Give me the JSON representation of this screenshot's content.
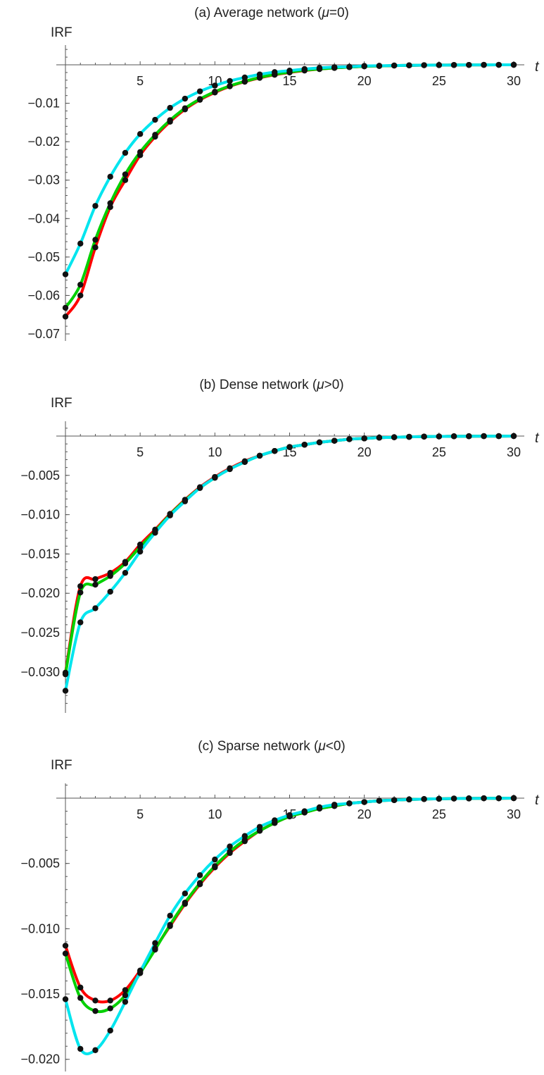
{
  "chart_data": [
    {
      "type": "line",
      "title_prefix": "(a) Average network (",
      "title_mu": "μ",
      "title_suffix": "=0)",
      "ylabel": "IRF",
      "xlabel": "t",
      "xlim": [
        0,
        30
      ],
      "ylim": [
        -0.07,
        0
      ],
      "xticks": [
        5,
        10,
        15,
        20,
        25,
        30
      ],
      "xtick_labels": [
        "5",
        "10",
        "15",
        "20",
        "25",
        "30"
      ],
      "yticks": [
        -0.01,
        -0.02,
        -0.03,
        -0.04,
        -0.05,
        -0.06,
        -0.07
      ],
      "ytick_labels": [
        "-0.01",
        "-0.02",
        "-0.03",
        "-0.04",
        "-0.05",
        "-0.06",
        "-0.07"
      ],
      "markers": "black dots at integer t",
      "series": [
        {
          "color": "#ff0000",
          "x": [
            0,
            1,
            2,
            3,
            4,
            5,
            6,
            7,
            8,
            9,
            10,
            11,
            12,
            13,
            14,
            15,
            16,
            17,
            18,
            19,
            20,
            21,
            22,
            23,
            24,
            25,
            26,
            27,
            28,
            29,
            30
          ],
          "values": [
            -0.0655,
            -0.06,
            -0.0475,
            -0.037,
            -0.03,
            -0.0235,
            -0.0187,
            -0.0148,
            -0.0116,
            -0.0091,
            -0.0072,
            -0.0056,
            -0.0044,
            -0.0034,
            -0.0026,
            -0.002,
            -0.0015,
            -0.0011,
            -0.0008,
            -0.0006,
            -0.0004,
            -0.0003,
            -0.0002,
            -0.00015,
            -0.0001,
            -7e-05,
            -5e-05,
            -3e-05,
            -2e-05,
            -1e-05,
            0
          ]
        },
        {
          "color": "#00d000",
          "x": [
            0,
            1,
            2,
            3,
            4,
            5,
            6,
            7,
            8,
            9,
            10,
            11,
            12,
            13,
            14,
            15,
            16,
            17,
            18,
            19,
            20,
            21,
            22,
            23,
            24,
            25,
            26,
            27,
            28,
            29,
            30
          ],
          "values": [
            -0.0632,
            -0.0572,
            -0.0455,
            -0.036,
            -0.0285,
            -0.0227,
            -0.0182,
            -0.0144,
            -0.0113,
            -0.0089,
            -0.007,
            -0.0055,
            -0.0043,
            -0.0033,
            -0.0025,
            -0.0019,
            -0.0014,
            -0.0011,
            -0.0008,
            -0.0006,
            -0.0004,
            -0.0003,
            -0.0002,
            -0.00015,
            -0.0001,
            -7e-05,
            -5e-05,
            -3e-05,
            -2e-05,
            -1e-05,
            0
          ]
        },
        {
          "color": "#00e5ee",
          "x": [
            0,
            1,
            2,
            3,
            4,
            5,
            6,
            7,
            8,
            9,
            10,
            11,
            12,
            13,
            14,
            15,
            16,
            17,
            18,
            19,
            20,
            21,
            22,
            23,
            24,
            25,
            26,
            27,
            28,
            29,
            30
          ],
          "values": [
            -0.0545,
            -0.0465,
            -0.0367,
            -0.0291,
            -0.0229,
            -0.018,
            -0.0143,
            -0.0112,
            -0.0088,
            -0.0069,
            -0.0054,
            -0.0042,
            -0.0033,
            -0.0025,
            -0.0019,
            -0.0015,
            -0.0011,
            -0.0008,
            -0.0006,
            -0.0005,
            -0.0003,
            -0.00025,
            -0.00018,
            -0.00013,
            -0.0001,
            -7e-05,
            -5e-05,
            -3e-05,
            -2e-05,
            -1e-05,
            0
          ]
        }
      ]
    },
    {
      "type": "line",
      "title_prefix": "(b) Dense network (",
      "title_mu": "μ",
      "title_suffix": ">0)",
      "ylabel": "IRF",
      "xlabel": "t",
      "xlim": [
        0,
        30
      ],
      "ylim": [
        -0.0345,
        0
      ],
      "xticks": [
        5,
        10,
        15,
        20,
        25,
        30
      ],
      "xtick_labels": [
        "5",
        "10",
        "15",
        "20",
        "25",
        "30"
      ],
      "yticks": [
        -0.005,
        -0.01,
        -0.015,
        -0.02,
        -0.025,
        -0.03
      ],
      "ytick_labels": [
        "-0.005",
        "-0.010",
        "-0.015",
        "-0.020",
        "-0.025",
        "-0.030"
      ],
      "markers": "black dots at integer t",
      "series": [
        {
          "color": "#ff0000",
          "x": [
            0,
            1,
            2,
            3,
            4,
            5,
            6,
            7,
            8,
            9,
            10,
            11,
            12,
            13,
            14,
            15,
            16,
            17,
            18,
            19,
            20,
            21,
            22,
            23,
            24,
            25,
            26,
            27,
            28,
            29,
            30
          ],
          "values": [
            -0.0301,
            -0.0191,
            -0.0182,
            -0.0174,
            -0.016,
            -0.0138,
            -0.0119,
            -0.0099,
            -0.0081,
            -0.0065,
            -0.0052,
            -0.0041,
            -0.0032,
            -0.0025,
            -0.0019,
            -0.0014,
            -0.0011,
            -0.0008,
            -0.0006,
            -0.0004,
            -0.0003,
            -0.0002,
            -0.00015,
            -0.0001,
            -7e-05,
            -5e-05,
            -3e-05,
            -2e-05,
            -1e-05,
            -1e-05,
            0
          ]
        },
        {
          "color": "#00d000",
          "x": [
            0,
            1,
            2,
            3,
            4,
            5,
            6,
            7,
            8,
            9,
            10,
            11,
            12,
            13,
            14,
            15,
            16,
            17,
            18,
            19,
            20,
            21,
            22,
            23,
            24,
            25,
            26,
            27,
            28,
            29,
            30
          ],
          "values": [
            -0.0303,
            -0.0199,
            -0.0189,
            -0.0178,
            -0.0162,
            -0.0141,
            -0.0121,
            -0.01,
            -0.0082,
            -0.0066,
            -0.0053,
            -0.0042,
            -0.0033,
            -0.0025,
            -0.0019,
            -0.0014,
            -0.0011,
            -0.0008,
            -0.0006,
            -0.0004,
            -0.0003,
            -0.0002,
            -0.00015,
            -0.0001,
            -7e-05,
            -5e-05,
            -3e-05,
            -2e-05,
            -1e-05,
            -1e-05,
            0
          ]
        },
        {
          "color": "#00e5ee",
          "x": [
            0,
            1,
            2,
            3,
            4,
            5,
            6,
            7,
            8,
            9,
            10,
            11,
            12,
            13,
            14,
            15,
            16,
            17,
            18,
            19,
            20,
            21,
            22,
            23,
            24,
            25,
            26,
            27,
            28,
            29,
            30
          ],
          "values": [
            -0.0324,
            -0.0237,
            -0.0219,
            -0.0198,
            -0.0174,
            -0.0147,
            -0.0123,
            -0.0101,
            -0.0083,
            -0.0066,
            -0.0053,
            -0.0042,
            -0.0033,
            -0.0025,
            -0.0019,
            -0.0014,
            -0.0011,
            -0.0008,
            -0.0006,
            -0.0004,
            -0.0003,
            -0.0002,
            -0.00015,
            -0.0001,
            -7e-05,
            -5e-05,
            -3e-05,
            -2e-05,
            -1e-05,
            -1e-05,
            0
          ]
        }
      ]
    },
    {
      "type": "line",
      "title_prefix": "(c) Sparse network (",
      "title_mu": "μ",
      "title_suffix": "<0)",
      "ylabel": "IRF",
      "xlabel": "t",
      "xlim": [
        0,
        30
      ],
      "ylim": [
        -0.0205,
        0
      ],
      "xticks": [
        5,
        10,
        15,
        20,
        25,
        30
      ],
      "xtick_labels": [
        "5",
        "10",
        "15",
        "20",
        "25",
        "30"
      ],
      "yticks": [
        -0.005,
        -0.01,
        -0.015,
        -0.02
      ],
      "ytick_labels": [
        "-0.005",
        "-0.010",
        "-0.015",
        "-0.020"
      ],
      "markers": "black dots at integer t",
      "series": [
        {
          "color": "#ff0000",
          "x": [
            0,
            1,
            2,
            3,
            4,
            5,
            6,
            7,
            8,
            9,
            10,
            11,
            12,
            13,
            14,
            15,
            16,
            17,
            18,
            19,
            20,
            21,
            22,
            23,
            24,
            25,
            26,
            27,
            28,
            29,
            30
          ],
          "values": [
            -0.0113,
            -0.0145,
            -0.0155,
            -0.0155,
            -0.0147,
            -0.0132,
            -0.0115,
            -0.0098,
            -0.0081,
            -0.0066,
            -0.0053,
            -0.0042,
            -0.0033,
            -0.0025,
            -0.0019,
            -0.0014,
            -0.0011,
            -0.0008,
            -0.0006,
            -0.0004,
            -0.0003,
            -0.0002,
            -0.00015,
            -0.0001,
            -7e-05,
            -5e-05,
            -3e-05,
            -2e-05,
            -1e-05,
            -1e-05,
            0
          ]
        },
        {
          "color": "#00d000",
          "x": [
            0,
            1,
            2,
            3,
            4,
            5,
            6,
            7,
            8,
            9,
            10,
            11,
            12,
            13,
            14,
            15,
            16,
            17,
            18,
            19,
            20,
            21,
            22,
            23,
            24,
            25,
            26,
            27,
            28,
            29,
            30
          ],
          "values": [
            -0.0119,
            -0.0153,
            -0.0163,
            -0.0161,
            -0.0151,
            -0.0134,
            -0.0116,
            -0.0097,
            -0.008,
            -0.0065,
            -0.0052,
            -0.0041,
            -0.0032,
            -0.0025,
            -0.0019,
            -0.0014,
            -0.0011,
            -0.0008,
            -0.0006,
            -0.0004,
            -0.0003,
            -0.0002,
            -0.00015,
            -0.0001,
            -7e-05,
            -5e-05,
            -3e-05,
            -2e-05,
            -1e-05,
            -1e-05,
            0
          ]
        },
        {
          "color": "#00e5ee",
          "x": [
            0,
            1,
            2,
            3,
            4,
            5,
            6,
            7,
            8,
            9,
            10,
            11,
            12,
            13,
            14,
            15,
            16,
            17,
            18,
            19,
            20,
            21,
            22,
            23,
            24,
            25,
            26,
            27,
            28,
            29,
            30
          ],
          "values": [
            -0.0154,
            -0.0192,
            -0.0193,
            -0.0178,
            -0.0156,
            -0.0133,
            -0.0111,
            -0.009,
            -0.0073,
            -0.0059,
            -0.0047,
            -0.0037,
            -0.0029,
            -0.0022,
            -0.0017,
            -0.0013,
            -0.001,
            -0.0007,
            -0.0005,
            -0.0004,
            -0.0003,
            -0.0002,
            -0.00015,
            -0.0001,
            -7e-05,
            -5e-05,
            -3e-05,
            -2e-05,
            -1e-05,
            -1e-05,
            0
          ]
        }
      ]
    }
  ]
}
